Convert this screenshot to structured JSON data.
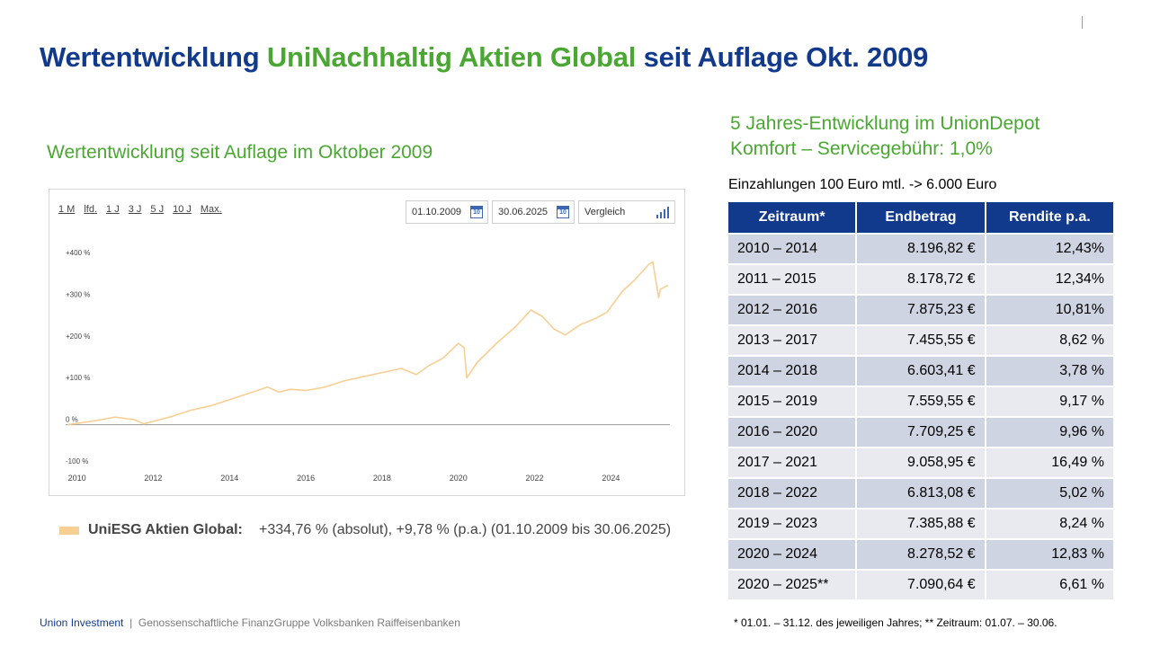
{
  "title": {
    "part1": "Wertentwicklung ",
    "fund": "UniNachhaltig Aktien Global",
    "part2": " seit Auflage Okt. 2009"
  },
  "left_subtitle": "Wertentwicklung seit Auflage im Oktober 2009",
  "chart_controls": {
    "ranges": [
      "1 M",
      "lfd.",
      "1 J",
      "3 J",
      "5 J",
      "10 J",
      "Max."
    ],
    "date_from": "01.10.2009",
    "date_to": "30.06.2025",
    "compare_label": "Vergleich",
    "calendar_day": "10"
  },
  "chart_data": {
    "type": "line",
    "title": "",
    "xlabel": "",
    "ylabel": "",
    "x_ticks": [
      "2010",
      "2012",
      "2014",
      "2016",
      "2018",
      "2020",
      "2022",
      "2024"
    ],
    "y_ticks": [
      "+400 %",
      "+300 %",
      "+200 %",
      "+100 %",
      "0 %",
      "-100 %"
    ],
    "y_tick_values": [
      400,
      300,
      200,
      100,
      0,
      -100
    ],
    "xlim": [
      2009.75,
      2025.5
    ],
    "ylim": [
      -100,
      400
    ],
    "grid": false,
    "series": [
      {
        "name": "UniESG Aktien Global:",
        "color": "#f7cf92",
        "x": [
          2009.75,
          2010.0,
          2010.5,
          2011.0,
          2011.5,
          2011.75,
          2012.0,
          2012.5,
          2013.0,
          2013.5,
          2014.0,
          2014.5,
          2015.0,
          2015.3,
          2015.6,
          2016.0,
          2016.5,
          2017.0,
          2017.5,
          2018.0,
          2018.5,
          2018.9,
          2019.2,
          2019.6,
          2020.0,
          2020.15,
          2020.22,
          2020.5,
          2021.0,
          2021.5,
          2021.9,
          2022.2,
          2022.5,
          2022.8,
          2023.2,
          2023.6,
          2023.9,
          2024.3,
          2024.6,
          2025.0,
          2025.1,
          2025.25,
          2025.3,
          2025.5
        ],
        "y": [
          0,
          3,
          10,
          18,
          12,
          2,
          8,
          20,
          35,
          45,
          60,
          75,
          90,
          78,
          85,
          82,
          90,
          105,
          115,
          125,
          135,
          120,
          140,
          160,
          195,
          185,
          112,
          150,
          195,
          235,
          275,
          260,
          230,
          215,
          240,
          255,
          270,
          320,
          345,
          385,
          390,
          305,
          325,
          334.76
        ]
      }
    ]
  },
  "legend": {
    "name": "UniESG Aktien Global:",
    "stats": "+334,76 % (absolut), +9,78 % (p.a.) (01.10.2009 bis 30.06.2025)"
  },
  "right_heading": {
    "line1": "5 Jahres-Entwicklung im UnionDepot",
    "line2": "Komfort – Servicegebühr: 1,0%"
  },
  "deposit_note": "Einzahlungen 100 Euro mtl. -> 6.000 Euro",
  "table": {
    "headers": [
      "Zeitraum*",
      "Endbetrag",
      "Rendite p.a."
    ],
    "rows": [
      [
        "2010 – 2014",
        "8.196,82 €",
        "12,43%"
      ],
      [
        "2011 – 2015",
        "8.178,72 €",
        "12,34%"
      ],
      [
        "2012 – 2016",
        "7.875,23 €",
        "10,81%"
      ],
      [
        "2013 – 2017",
        "7.455,55 €",
        "8,62 %"
      ],
      [
        "2014 – 2018",
        "6.603,41 €",
        "3,78 %"
      ],
      [
        "2015 – 2019",
        "7.559,55 €",
        "9,17 %"
      ],
      [
        "2016 – 2020",
        "7.709,25 €",
        "9,96 %"
      ],
      [
        "2017 – 2021",
        "9.058,95 €",
        "16,49 %"
      ],
      [
        "2018 – 2022",
        "6.813,08 €",
        "5,02 %"
      ],
      [
        "2019 – 2023",
        "7.385,88 €",
        "8,24 %"
      ],
      [
        "2020 – 2024",
        "8.278,52 €",
        "12,83 %"
      ],
      [
        "2020 – 2025**",
        "7.090,64 €",
        "6,61 %"
      ]
    ]
  },
  "footer": {
    "brand": "Union Investment",
    "separator": "|",
    "group": "Genossenschaftliche FinanzGruppe Volksbanken Raiffeisenbanken",
    "footnote": "* 01.01. – 31.12. des jeweiligen Jahres; ** Zeitraum: 01.07. – 30.06."
  },
  "colors": {
    "brand_blue": "#123a8c",
    "brand_green": "#4aa832",
    "line": "#f7cf92"
  }
}
